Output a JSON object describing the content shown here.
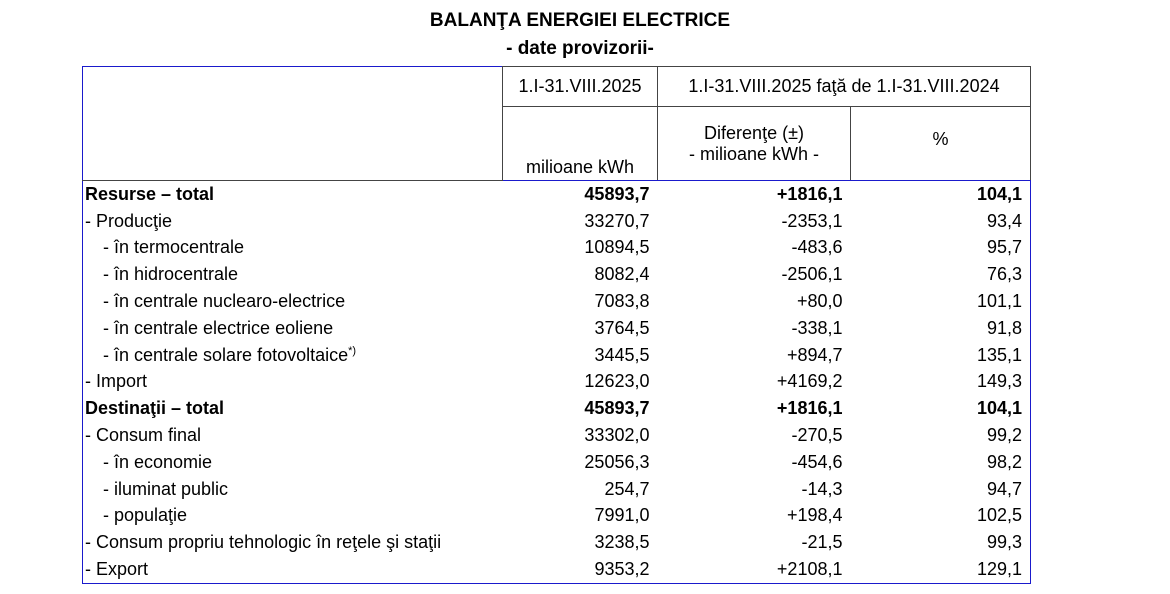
{
  "header": {
    "title": "BALANŢA ENERGIEI ELECTRICE",
    "subtitle": "- date provizorii-"
  },
  "table": {
    "columns": {
      "period": "1.I-31.VIII.2025",
      "comparison": "1.I-31.VIII.2025 faţă de 1.I-31.VIII.2024",
      "unit": "milioane kWh",
      "diff_title": "Diferenţe (±)",
      "diff_unit": "- milioane kWh -",
      "percent": "%"
    },
    "rows": [
      [
        "Resurse – total",
        "45893,7",
        "+1816,1",
        "104,1"
      ],
      [
        "- Producţie",
        "33270,7",
        "-2353,1",
        "93,4"
      ],
      [
        "- în termocentrale",
        "10894,5",
        "-483,6",
        "95,7"
      ],
      [
        "- în hidrocentrale",
        "8082,4",
        "-2506,1",
        "76,3"
      ],
      [
        "- în centrale nuclearo-electrice",
        "7083,8",
        "+80,0",
        "101,1"
      ],
      [
        "- în centrale electrice eoliene",
        "3764,5",
        "-338,1",
        "91,8"
      ],
      [
        "- în centrale solare fotovoltaice",
        "3445,5",
        "+894,7",
        "135,1"
      ],
      [
        "- Import",
        "12623,0",
        "+4169,2",
        "149,3"
      ],
      [
        "Destinaţii – total",
        "45893,7",
        "+1816,1",
        "104,1"
      ],
      [
        "- Consum final",
        "33302,0",
        "-270,5",
        "99,2"
      ],
      [
        "- în economie",
        "25056,3",
        "-454,6",
        "98,2"
      ],
      [
        "- iluminat public",
        "254,7",
        "-14,3",
        "94,7"
      ],
      [
        "- populaţie",
        "7991,0",
        "+198,4",
        "102,5"
      ],
      [
        "- Consum propriu tehnologic în reţele şi staţii",
        "3238,5",
        "-21,5",
        "99,3"
      ],
      [
        "- Export",
        "9353,2",
        "+2108,1",
        "129,1"
      ]
    ],
    "footnote_mark": "*)"
  }
}
